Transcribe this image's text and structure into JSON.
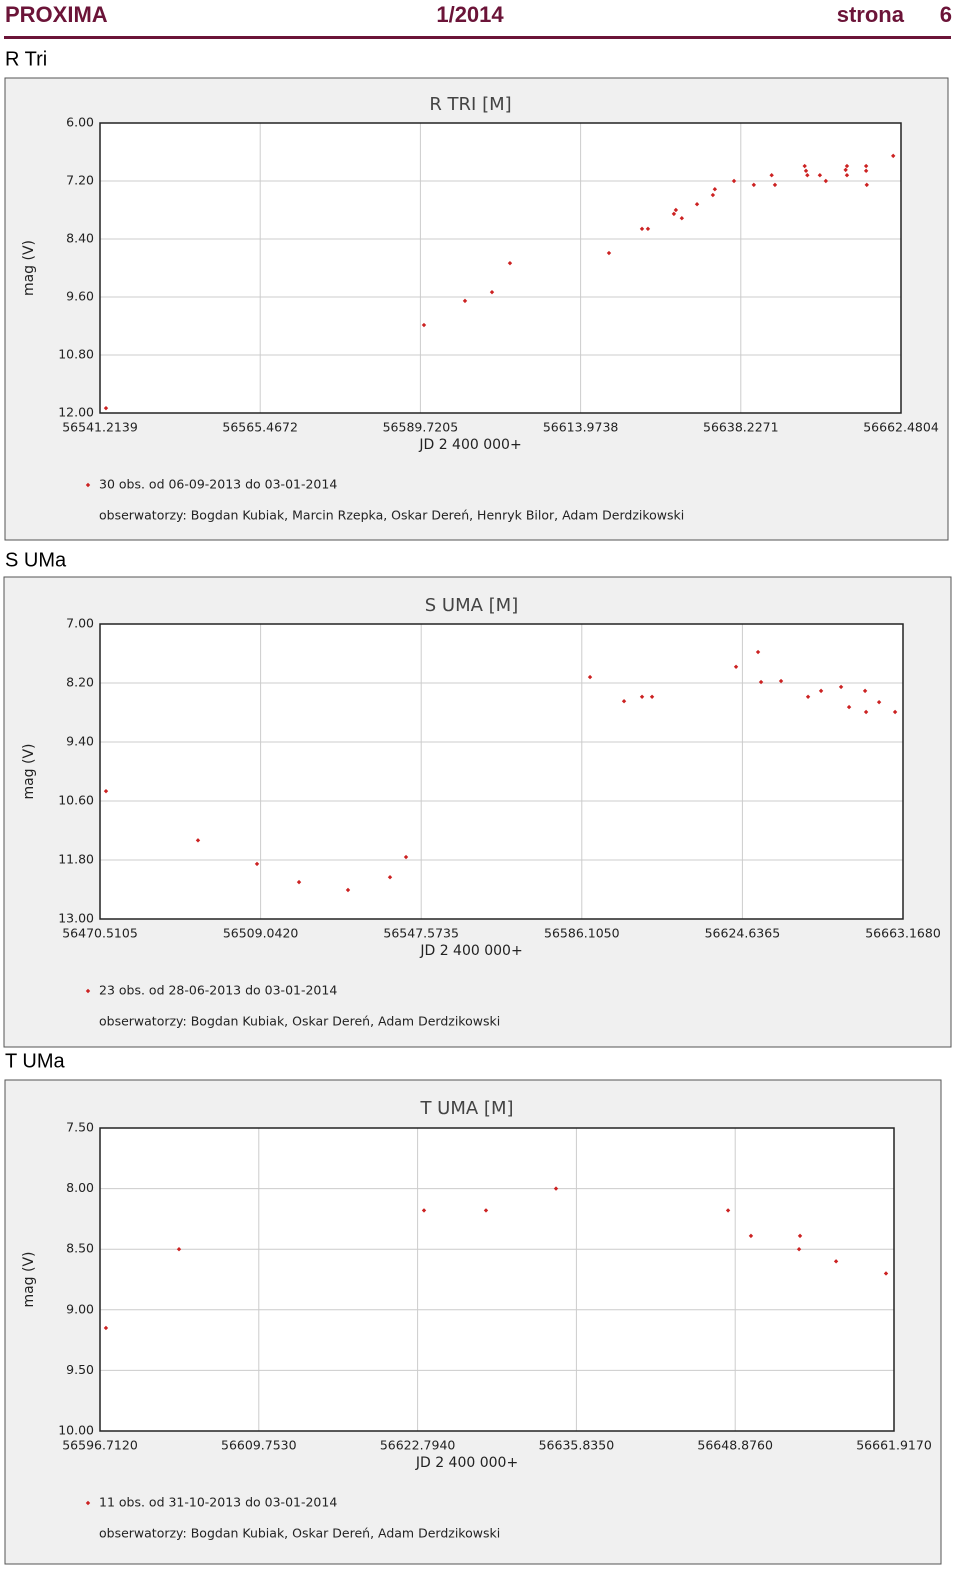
{
  "header": {
    "left": "PROXIMA",
    "center": "1/2014",
    "right": "strona",
    "page": "6"
  },
  "sections": [
    "R Tri",
    "S UMa",
    "T UMa"
  ],
  "chart_data": [
    {
      "type": "scatter",
      "title": "R TRI [M]",
      "xlabel": "JD 2 400 000+",
      "ylabel": "mag (V)",
      "color": "#cc2222",
      "legend": "30 obs. od 06-09-2013 do 03-01-2014",
      "note": "obserwatorzy: Bogdan Kubiak, Marcin Rzepka, Oskar Dereń, Henryk Bilor, Adam Derdzikowski",
      "xlim": [
        56541.2139,
        56662.4804
      ],
      "xticks": [
        56541.2139,
        56565.4672,
        56589.7205,
        56613.9738,
        56638.2271,
        56662.4804
      ],
      "ylim": [
        12,
        6
      ],
      "yticks": [
        {
          "value": 6,
          "label": "6.00"
        },
        {
          "value": 7.2,
          "label": "7.20"
        },
        {
          "value": 8.4,
          "label": "8.40"
        },
        {
          "value": 9.6,
          "label": "9.60"
        },
        {
          "value": 10.8,
          "label": "10.80"
        },
        {
          "value": 12,
          "label": "12.00"
        }
      ],
      "grid": true,
      "x": [
        56542.12,
        56590.26,
        56596.47,
        56600.56,
        56603.28,
        56618.27,
        56623.27,
        56624.17,
        56628.1,
        56628.4,
        56629.3,
        56631.6,
        56634.0,
        56634.3,
        56637.2,
        56640.2,
        56642.9,
        56643.4,
        56647.9,
        56648.1,
        56648.3,
        56650.2,
        56651.1,
        56654.1,
        56654.3,
        56654.3,
        56657.2,
        56657.2,
        56657.3,
        56661.3
      ],
      "values": [
        11.9,
        10.18,
        9.68,
        9.5,
        8.9,
        8.69,
        8.19,
        8.19,
        7.88,
        7.8,
        7.97,
        7.68,
        7.49,
        7.37,
        7.2,
        7.28,
        7.08,
        7.28,
        6.89,
        6.99,
        7.08,
        7.08,
        7.2,
        6.97,
        6.89,
        7.08,
        6.89,
        6.99,
        7.28,
        6.68
      ]
    },
    {
      "type": "scatter",
      "title": "S UMA [M]",
      "xlabel": "JD 2 400 000+",
      "ylabel": "mag (V)",
      "color": "#cc2222",
      "legend": "23 obs. od 28-06-2013 do 03-01-2014",
      "note": "obserwatorzy: Bogdan Kubiak, Oskar Dereń, Adam Derdzikowski",
      "xlim": [
        56470.5105,
        56663.168
      ],
      "xticks": [
        56470.5105,
        {
          "value": 56509.042,
          "label": "56509.0420"
        },
        56547.5735,
        {
          "value": 56586.105,
          "label": "56586.1050"
        },
        56624.6365,
        {
          "value": 56663.168,
          "label": "56663.1680"
        }
      ],
      "ylim": [
        13,
        7
      ],
      "yticks": [
        {
          "value": 7,
          "label": "7.00"
        },
        {
          "value": 8.2,
          "label": "8.20"
        },
        {
          "value": 9.4,
          "label": "9.40"
        },
        {
          "value": 10.6,
          "label": "10.60"
        },
        {
          "value": 11.8,
          "label": "11.80"
        },
        {
          "value": 13,
          "label": "13.00"
        }
      ],
      "grid": true,
      "x": [
        56471.95,
        56494.02,
        56508.18,
        56518.26,
        56530.01,
        56540.09,
        56543.93,
        56588.08,
        56596.24,
        56600.56,
        56602.96,
        56623.11,
        56628.39,
        56629.11,
        56633.91,
        56640.39,
        56643.51,
        56648.31,
        56650.23,
        56654.07,
        56654.31,
        56657.43,
        56661.27
      ],
      "values": [
        10.4,
        11.4,
        11.88,
        12.25,
        12.41,
        12.15,
        11.74,
        8.08,
        8.57,
        8.48,
        8.48,
        7.87,
        7.57,
        8.18,
        8.16,
        8.48,
        8.36,
        8.28,
        8.69,
        8.36,
        8.79,
        8.59,
        8.79
      ]
    },
    {
      "type": "scatter",
      "title": "T UMA [M]",
      "xlabel": "JD 2 400 000+",
      "ylabel": "mag (V)",
      "color": "#cc2222",
      "legend": "11 obs. od 31-10-2013 do 03-01-2014",
      "note": "obserwatorzy: Bogdan Kubiak, Oskar Dereń, Adam Derdzikowski",
      "xlim": [
        56596.712,
        56661.917
      ],
      "xticks": [
        {
          "value": 56596.712,
          "label": "56596.7120"
        },
        {
          "value": 56609.753,
          "label": "56609.7530"
        },
        {
          "value": 56622.794,
          "label": "56622.7940"
        },
        {
          "value": 56635.835,
          "label": "56635.8350"
        },
        {
          "value": 56648.876,
          "label": "56648.8760"
        },
        {
          "value": 56661.917,
          "label": "56661.9170"
        }
      ],
      "ylim": [
        10,
        7.5
      ],
      "yticks": [
        {
          "value": 7.5,
          "label": "7.50"
        },
        {
          "value": 8,
          "label": "8.00"
        },
        {
          "value": 8.5,
          "label": "8.50"
        },
        {
          "value": 9,
          "label": "9.00"
        },
        {
          "value": 9.5,
          "label": "9.50"
        },
        {
          "value": 10,
          "label": "10.00"
        }
      ],
      "grid": true,
      "x": [
        56597.2,
        56603.2,
        56623.32,
        56628.41,
        56634.16,
        56648.29,
        56650.17,
        56654.2,
        56654.12,
        56657.16,
        56661.26
      ],
      "values": [
        9.15,
        8.5,
        8.18,
        8.18,
        8.0,
        8.18,
        8.39,
        8.39,
        8.5,
        8.6,
        8.7
      ]
    }
  ]
}
